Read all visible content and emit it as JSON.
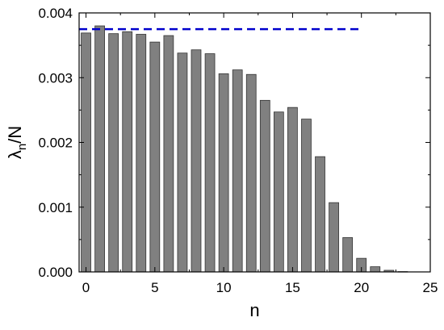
{
  "chart_data": {
    "type": "bar",
    "xlabel": "n",
    "ylabel_main": "λ",
    "ylabel_sub": "n",
    "ylabel_tail": "/N",
    "xlim": [
      -0.5,
      25
    ],
    "ylim": [
      0,
      0.004
    ],
    "xticks": [
      0,
      5,
      10,
      15,
      20,
      25
    ],
    "xtick_labels": [
      "0",
      "5",
      "10",
      "15",
      "20",
      "25"
    ],
    "yticks": [
      0,
      0.001,
      0.002,
      0.003,
      0.004
    ],
    "ytick_labels": [
      "0.000",
      "0.001",
      "0.002",
      "0.003",
      "0.004"
    ],
    "grid": false,
    "x": [
      0,
      1,
      2,
      3,
      4,
      5,
      6,
      7,
      8,
      9,
      10,
      11,
      12,
      13,
      14,
      15,
      16,
      17,
      18,
      19,
      20,
      21,
      22,
      23
    ],
    "values": [
      0.00369,
      0.0038,
      0.00368,
      0.00371,
      0.00367,
      0.00355,
      0.00365,
      0.00338,
      0.00343,
      0.00337,
      0.00306,
      0.00312,
      0.00305,
      0.00265,
      0.00247,
      0.00254,
      0.00236,
      0.00178,
      0.00107,
      0.00053,
      0.00021,
      8e-05,
      2.5e-05,
      5e-06
    ],
    "reference_line": {
      "x_start": -0.5,
      "x_end": 20,
      "y": 0.00375,
      "style": "dashed"
    },
    "colors": {
      "bar_fill": "#808080",
      "bar_stroke": "#333333",
      "reference_line": "#0000cc"
    }
  }
}
